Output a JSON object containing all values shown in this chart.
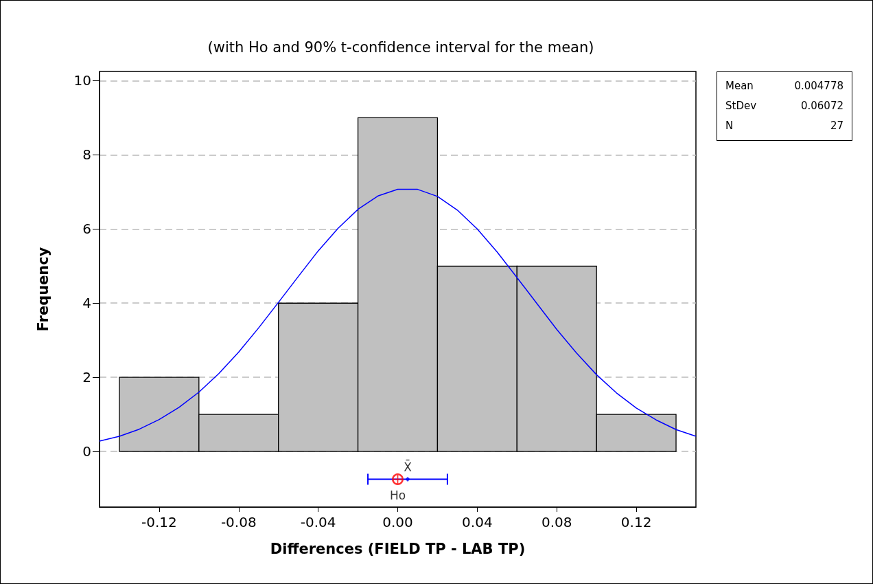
{
  "chart_data": {
    "type": "histogram",
    "title": "(with Ho and 90% t-confidence interval for the mean)",
    "xlabel": "Differences (FIELD TP - LAB TP)",
    "ylabel": "Frequency",
    "bins": [
      -0.14,
      -0.1,
      -0.06,
      -0.02,
      0.02,
      0.06,
      0.1,
      0.14
    ],
    "values": [
      2,
      1,
      4,
      9,
      5,
      5,
      1
    ],
    "color": "#c0c0c0",
    "series": [
      {
        "type": "line",
        "color": "#0000ff",
        "marker": "none",
        "x": [
          -0.15,
          -0.14,
          -0.13,
          -0.12,
          -0.11,
          -0.1,
          -0.09,
          -0.08,
          -0.07,
          -0.06,
          -0.05,
          -0.04,
          -0.03,
          -0.02,
          -0.01,
          0.0,
          0.01,
          0.02,
          0.03,
          0.04,
          0.05,
          0.06,
          0.07,
          0.08,
          0.09,
          0.1,
          0.11,
          0.12,
          0.13,
          0.14,
          0.15
        ],
        "values": [
          0.28,
          0.41,
          0.6,
          0.86,
          1.19,
          1.6,
          2.1,
          2.68,
          3.33,
          4.02,
          4.72,
          5.41,
          6.02,
          6.53,
          6.89,
          7.07,
          7.07,
          6.88,
          6.51,
          6.0,
          5.38,
          4.69,
          3.99,
          3.29,
          2.65,
          2.07,
          1.58,
          1.17,
          0.85,
          0.59,
          0.41
        ]
      },
      {
        "type": "scatter",
        "name": "X̄",
        "color": "#0000ff",
        "marker": "diamond",
        "x": [
          0.005
        ],
        "values": [
          -0.75
        ],
        "xerrors": [
          [
            -0.015,
            0.025
          ]
        ]
      },
      {
        "type": "scatter",
        "name": "Ho",
        "color": "#ff0000",
        "marker": "circle",
        "x": [
          0
        ],
        "values": [
          -0.75
        ]
      }
    ],
    "xlim": [
      -0.15,
      0.15
    ],
    "xticks": [
      -0.12,
      -0.08,
      -0.04,
      {
        "value": 0,
        "label": "0.00"
      },
      0.04,
      0.08,
      0.12
    ],
    "ylim": [
      -1.5,
      10.25
    ],
    "yticks": [
      0,
      2,
      4,
      6,
      8,
      10
    ],
    "grid": "y",
    "legend": false,
    "annotations": [
      "Mean 0.004778",
      "StDev 0.06072",
      "N 27"
    ]
  }
}
